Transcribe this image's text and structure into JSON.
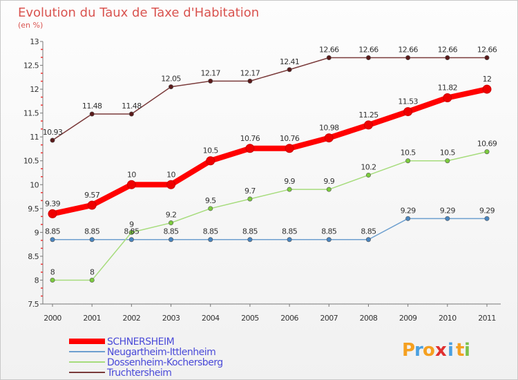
{
  "chart_data": {
    "type": "line",
    "title": "Evolution du Taux de Taxe d'Habitation",
    "subtitle": "(en %)",
    "xlabel": "",
    "ylabel": "",
    "categories": [
      "2000",
      "2001",
      "2002",
      "2003",
      "2004",
      "2005",
      "2006",
      "2007",
      "2008",
      "2009",
      "2010",
      "2011"
    ],
    "ylim": [
      7.5,
      13
    ],
    "yticks": [
      "7.5",
      "8",
      "8.5",
      "9",
      "9.5",
      "10",
      "10.5",
      "11",
      "11.5",
      "12",
      "12.5",
      "13"
    ],
    "grid": false,
    "legend_position": "bottom-left",
    "series": [
      {
        "name": "SCHNERSHEIM",
        "color": "#ff0000",
        "marker": "#ee0000",
        "values": [
          9.39,
          9.57,
          10,
          10,
          10.5,
          10.76,
          10.76,
          10.98,
          11.25,
          11.53,
          11.82,
          12
        ],
        "labels": [
          "9.39",
          "9.57",
          "10",
          "10",
          "10.5",
          "10.76",
          "10.76",
          "10.98",
          "11.25",
          "11.53",
          "11.82",
          "12"
        ]
      },
      {
        "name": "Neugartheim-Ittlenheim",
        "color": "#6d9fcf",
        "marker": "#4a86c0",
        "values": [
          8.85,
          8.85,
          8.85,
          8.85,
          8.85,
          8.85,
          8.85,
          8.85,
          8.85,
          9.29,
          9.29,
          9.29
        ],
        "labels": [
          "8.85",
          "8.85",
          "8.85",
          "8.85",
          "8.85",
          "8.85",
          "8.85",
          "8.85",
          "8.85",
          "9.29",
          "9.29",
          "9.29"
        ]
      },
      {
        "name": "Dossenheim-Kochersberg",
        "color": "#a6dc7c",
        "marker": "#7ccb3e",
        "values": [
          8,
          8,
          9,
          9.2,
          9.5,
          9.7,
          9.9,
          9.9,
          10.2,
          10.5,
          10.5,
          10.69
        ],
        "labels": [
          "8",
          "8",
          "9",
          "9.2",
          "9.5",
          "9.7",
          "9.9",
          "9.9",
          "10.2",
          "10.5",
          "10.5",
          "10.69"
        ]
      },
      {
        "name": "Truchtersheim",
        "color": "#7a3a3a",
        "marker": "#5a1a1a",
        "values": [
          10.93,
          11.48,
          11.48,
          12.05,
          12.17,
          12.17,
          12.41,
          12.66,
          12.66,
          12.66,
          12.66,
          12.66
        ],
        "labels": [
          "10.93",
          "11.48",
          "11.48",
          "12.05",
          "12.17",
          "12.17",
          "12.41",
          "12.66",
          "12.66",
          "12.66",
          "12.66",
          "12.66"
        ]
      }
    ]
  },
  "logo": {
    "letters": [
      "P",
      "r",
      "o",
      "x",
      "i",
      "t",
      "i"
    ],
    "colors": [
      "#f5a020",
      "#4aa0e0",
      "#f5a020",
      "#e03030",
      "#4aa0e0",
      "#f5a020",
      "#7cc24a"
    ]
  }
}
